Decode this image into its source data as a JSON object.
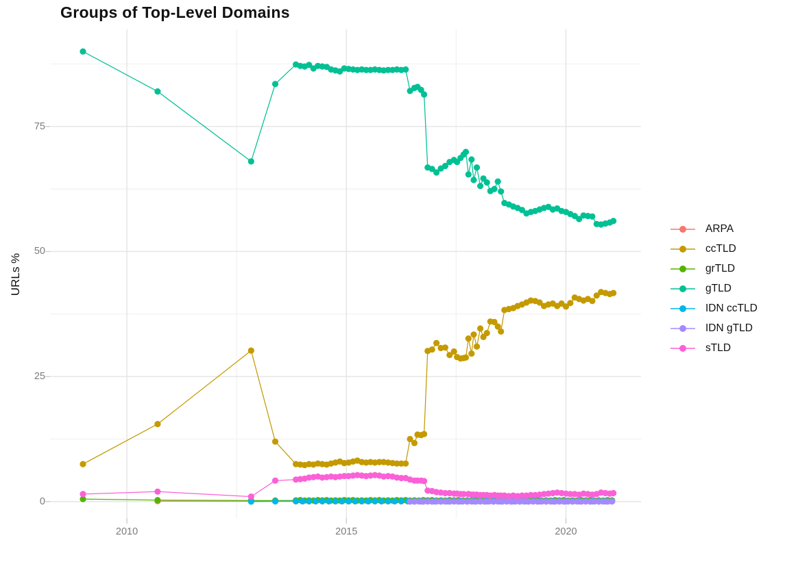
{
  "title": "Groups of Top-Level Domains",
  "colors": {
    "background": "#ffffff",
    "grid_major": "#e4e4e4",
    "grid_minor": "#f1f1f1",
    "tick_mark": "#cdcdcd",
    "tick_label": "#7b7b7b",
    "title_text": "#111111",
    "legend_text": "#111111"
  },
  "chart_data": {
    "type": "scatter",
    "title": "Groups of Top-Level Domains",
    "xlabel": "",
    "ylabel": "URLs %",
    "grid": true,
    "legend_position": "right",
    "x_ticks": [
      2010,
      2015,
      2020
    ],
    "x_minor": [
      2012.5,
      2017.5
    ],
    "y_ticks": [
      0,
      25,
      50,
      75
    ],
    "y_minor": [
      12.5,
      37.5,
      62.5,
      87.5
    ],
    "xlim": [
      2008.25,
      2021.71
    ],
    "ylim": [
      -3.3,
      94.4
    ],
    "series": [
      {
        "name": "ARPA",
        "color": "#F8766D",
        "points": [
          [
            2010.7,
            0.1
          ],
          [
            2012.83,
            0.07
          ],
          {
            "from": 2013.85,
            "to": 2021.08,
            "step": 0.15,
            "values": [
              0.05
            ]
          }
        ]
      },
      {
        "name": "ccTLD",
        "color": "#C49A00",
        "points": [
          [
            2009.0,
            7.5
          ],
          [
            2010.7,
            15.5
          ],
          [
            2012.83,
            30.2
          ],
          [
            2013.38,
            12.0
          ],
          [
            2013.85,
            7.5
          ],
          [
            2013.95,
            7.4
          ],
          [
            2014.05,
            7.3
          ],
          [
            2014.15,
            7.5
          ],
          [
            2014.25,
            7.4
          ],
          [
            2014.35,
            7.6
          ],
          [
            2014.45,
            7.5
          ],
          [
            2014.55,
            7.4
          ],
          [
            2014.65,
            7.6
          ],
          [
            2014.75,
            7.8
          ],
          [
            2014.85,
            8.0
          ],
          [
            2014.95,
            7.7
          ],
          [
            2015.05,
            7.8
          ],
          [
            2015.15,
            8.0
          ],
          [
            2015.25,
            8.2
          ],
          [
            2015.35,
            7.9
          ],
          [
            2015.45,
            7.8
          ],
          [
            2015.55,
            7.9
          ],
          [
            2015.65,
            7.8
          ],
          [
            2015.75,
            7.9
          ],
          [
            2015.85,
            7.9
          ],
          [
            2015.95,
            7.8
          ],
          [
            2016.05,
            7.7
          ],
          [
            2016.15,
            7.6
          ],
          [
            2016.25,
            7.6
          ],
          [
            2016.35,
            7.6
          ],
          [
            2016.45,
            12.5
          ],
          [
            2016.55,
            11.7
          ],
          [
            2016.62,
            13.4
          ],
          [
            2016.7,
            13.3
          ],
          [
            2016.77,
            13.5
          ],
          [
            2016.85,
            30.1
          ],
          [
            2016.95,
            30.4
          ],
          [
            2017.05,
            31.7
          ],
          [
            2017.15,
            30.7
          ],
          [
            2017.25,
            30.8
          ],
          [
            2017.35,
            29.3
          ],
          [
            2017.45,
            30.0
          ],
          [
            2017.52,
            28.9
          ],
          [
            2017.6,
            28.6
          ],
          [
            2017.67,
            28.7
          ],
          [
            2017.72,
            28.8
          ],
          [
            2017.78,
            32.6
          ],
          [
            2017.85,
            29.6
          ],
          [
            2017.9,
            33.4
          ],
          [
            2017.97,
            31.0
          ],
          [
            2018.05,
            34.6
          ],
          [
            2018.12,
            32.9
          ],
          [
            2018.2,
            33.7
          ],
          [
            2018.28,
            36.0
          ],
          [
            2018.37,
            35.9
          ],
          [
            2018.45,
            35.0
          ],
          [
            2018.52,
            34.0
          ],
          [
            2018.6,
            38.3
          ],
          [
            2018.7,
            38.5
          ],
          [
            2018.8,
            38.7
          ],
          [
            2018.9,
            39.1
          ],
          [
            2019.0,
            39.4
          ],
          [
            2019.1,
            39.8
          ],
          [
            2019.2,
            40.2
          ],
          [
            2019.3,
            40.1
          ],
          [
            2019.4,
            39.8
          ],
          [
            2019.5,
            39.1
          ],
          [
            2019.6,
            39.4
          ],
          [
            2019.7,
            39.6
          ],
          [
            2019.8,
            39.1
          ],
          [
            2019.9,
            39.6
          ],
          [
            2020.0,
            39.0
          ],
          [
            2020.1,
            39.7
          ],
          [
            2020.2,
            40.8
          ],
          [
            2020.3,
            40.5
          ],
          [
            2020.4,
            40.2
          ],
          [
            2020.5,
            40.5
          ],
          [
            2020.6,
            40.1
          ],
          [
            2020.7,
            41.2
          ],
          [
            2020.8,
            41.9
          ],
          [
            2020.9,
            41.7
          ],
          [
            2021.0,
            41.5
          ],
          [
            2021.08,
            41.7
          ]
        ]
      },
      {
        "name": "grTLD",
        "color": "#53B400",
        "points": [
          [
            2009.0,
            0.5
          ],
          [
            2010.7,
            0.3
          ],
          [
            2012.83,
            0.2
          ],
          [
            2013.38,
            0.2
          ],
          {
            "from": 2013.85,
            "to": 2021.08,
            "step": 0.1,
            "values": [
              0.25,
              0.3,
              0.2,
              0.25,
              0.2,
              0.3
            ]
          }
        ]
      },
      {
        "name": "gTLD",
        "color": "#00C094",
        "points": [
          [
            2009.0,
            90.0
          ],
          [
            2010.7,
            82.0
          ],
          [
            2012.83,
            68.0
          ],
          [
            2013.38,
            83.5
          ],
          [
            2013.85,
            87.4
          ],
          [
            2013.95,
            87.1
          ],
          [
            2014.05,
            87.0
          ],
          [
            2014.15,
            87.3
          ],
          [
            2014.25,
            86.6
          ],
          [
            2014.35,
            87.1
          ],
          [
            2014.45,
            87.0
          ],
          [
            2014.55,
            86.9
          ],
          [
            2014.65,
            86.4
          ],
          [
            2014.75,
            86.2
          ],
          [
            2014.85,
            86.0
          ],
          [
            2014.95,
            86.6
          ],
          [
            2015.05,
            86.5
          ],
          [
            2015.15,
            86.4
          ],
          [
            2015.25,
            86.3
          ],
          [
            2015.35,
            86.4
          ],
          [
            2015.45,
            86.3
          ],
          [
            2015.55,
            86.3
          ],
          [
            2015.65,
            86.4
          ],
          [
            2015.75,
            86.3
          ],
          [
            2015.85,
            86.2
          ],
          [
            2015.95,
            86.3
          ],
          [
            2016.05,
            86.3
          ],
          [
            2016.15,
            86.4
          ],
          [
            2016.25,
            86.3
          ],
          [
            2016.35,
            86.4
          ],
          [
            2016.45,
            82.1
          ],
          [
            2016.55,
            82.7
          ],
          [
            2016.62,
            82.9
          ],
          [
            2016.7,
            82.3
          ],
          [
            2016.77,
            81.4
          ],
          [
            2016.85,
            66.8
          ],
          [
            2016.95,
            66.5
          ],
          [
            2017.05,
            65.8
          ],
          [
            2017.15,
            66.6
          ],
          [
            2017.25,
            67.1
          ],
          [
            2017.35,
            67.9
          ],
          [
            2017.45,
            68.3
          ],
          [
            2017.52,
            67.9
          ],
          [
            2017.6,
            68.7
          ],
          [
            2017.67,
            69.4
          ],
          [
            2017.72,
            69.9
          ],
          [
            2017.78,
            65.4
          ],
          [
            2017.85,
            68.4
          ],
          [
            2017.9,
            64.3
          ],
          [
            2017.97,
            66.8
          ],
          [
            2018.05,
            63.1
          ],
          [
            2018.12,
            64.6
          ],
          [
            2018.2,
            63.8
          ],
          [
            2018.28,
            62.1
          ],
          [
            2018.37,
            62.5
          ],
          [
            2018.45,
            64.0
          ],
          [
            2018.52,
            62.0
          ],
          [
            2018.6,
            59.7
          ],
          [
            2018.7,
            59.4
          ],
          [
            2018.8,
            59.0
          ],
          [
            2018.9,
            58.7
          ],
          [
            2019.0,
            58.3
          ],
          [
            2019.1,
            57.6
          ],
          [
            2019.2,
            57.9
          ],
          [
            2019.3,
            58.1
          ],
          [
            2019.4,
            58.4
          ],
          [
            2019.5,
            58.7
          ],
          [
            2019.6,
            58.9
          ],
          [
            2019.7,
            58.4
          ],
          [
            2019.8,
            58.6
          ],
          [
            2019.9,
            58.1
          ],
          [
            2020.0,
            57.9
          ],
          [
            2020.1,
            57.5
          ],
          [
            2020.2,
            57.1
          ],
          [
            2020.3,
            56.5
          ],
          [
            2020.4,
            57.2
          ],
          [
            2020.5,
            57.1
          ],
          [
            2020.6,
            57.0
          ],
          [
            2020.7,
            55.5
          ],
          [
            2020.8,
            55.4
          ],
          [
            2020.9,
            55.6
          ],
          [
            2021.0,
            55.8
          ],
          [
            2021.08,
            56.1
          ]
        ]
      },
      {
        "name": "IDN ccTLD",
        "color": "#00B6EB",
        "points": [
          [
            2012.83,
            0.0
          ],
          [
            2013.38,
            0.05
          ],
          {
            "from": 2013.85,
            "to": 2021.08,
            "step": 0.15,
            "values": [
              0.08
            ]
          }
        ]
      },
      {
        "name": "IDN gTLD",
        "color": "#A58AFF",
        "points": [
          [
            2016.45,
            0.0
          ],
          {
            "from": 2016.55,
            "to": 2021.08,
            "step": 0.1,
            "values": [
              0.0,
              0.02
            ]
          }
        ]
      },
      {
        "name": "sTLD",
        "color": "#FB61D7",
        "points": [
          [
            2009.0,
            1.5
          ],
          [
            2010.7,
            2.0
          ],
          [
            2012.83,
            1.0
          ],
          [
            2013.38,
            4.2
          ],
          [
            2013.85,
            4.4
          ],
          [
            2013.95,
            4.5
          ],
          [
            2014.05,
            4.6
          ],
          [
            2014.15,
            4.8
          ],
          [
            2014.25,
            4.9
          ],
          [
            2014.35,
            5.0
          ],
          [
            2014.45,
            4.8
          ],
          [
            2014.55,
            4.9
          ],
          [
            2014.65,
            5.0
          ],
          [
            2014.75,
            4.9
          ],
          [
            2014.85,
            5.0
          ],
          [
            2014.95,
            5.1
          ],
          [
            2015.05,
            5.1
          ],
          [
            2015.15,
            5.2
          ],
          [
            2015.25,
            5.3
          ],
          [
            2015.35,
            5.2
          ],
          [
            2015.45,
            5.1
          ],
          [
            2015.55,
            5.2
          ],
          [
            2015.65,
            5.3
          ],
          [
            2015.75,
            5.2
          ],
          [
            2015.85,
            5.0
          ],
          [
            2015.95,
            5.1
          ],
          [
            2016.05,
            5.0
          ],
          [
            2016.15,
            4.8
          ],
          [
            2016.25,
            4.7
          ],
          [
            2016.35,
            4.7
          ],
          [
            2016.45,
            4.4
          ],
          [
            2016.55,
            4.2
          ],
          [
            2016.62,
            4.2
          ],
          [
            2016.7,
            4.2
          ],
          [
            2016.77,
            4.1
          ],
          [
            2016.85,
            2.2
          ],
          [
            2016.95,
            2.1
          ],
          [
            2017.05,
            1.9
          ],
          [
            2017.15,
            1.8
          ],
          [
            2017.25,
            1.7
          ],
          [
            2017.35,
            1.7
          ],
          [
            2017.45,
            1.6
          ],
          [
            2017.52,
            1.6
          ],
          [
            2017.6,
            1.5
          ],
          [
            2017.67,
            1.5
          ],
          [
            2017.78,
            1.5
          ],
          [
            2017.85,
            1.4
          ],
          [
            2017.9,
            1.4
          ],
          [
            2017.97,
            1.4
          ],
          [
            2018.05,
            1.3
          ],
          [
            2018.12,
            1.3
          ],
          [
            2018.2,
            1.3
          ],
          [
            2018.28,
            1.2
          ],
          [
            2018.37,
            1.3
          ],
          [
            2018.45,
            1.2
          ],
          [
            2018.52,
            1.2
          ],
          [
            2018.6,
            1.2
          ],
          [
            2018.7,
            1.1
          ],
          [
            2018.8,
            1.2
          ],
          [
            2018.9,
            1.1
          ],
          [
            2019.0,
            1.2
          ],
          [
            2019.1,
            1.2
          ],
          [
            2019.2,
            1.3
          ],
          [
            2019.3,
            1.3
          ],
          [
            2019.4,
            1.4
          ],
          [
            2019.5,
            1.5
          ],
          [
            2019.6,
            1.6
          ],
          [
            2019.7,
            1.7
          ],
          [
            2019.8,
            1.8
          ],
          [
            2019.9,
            1.7
          ],
          [
            2020.0,
            1.6
          ],
          [
            2020.1,
            1.5
          ],
          [
            2020.2,
            1.5
          ],
          [
            2020.3,
            1.4
          ],
          [
            2020.4,
            1.6
          ],
          [
            2020.5,
            1.5
          ],
          [
            2020.6,
            1.4
          ],
          [
            2020.7,
            1.5
          ],
          [
            2020.8,
            1.8
          ],
          [
            2020.9,
            1.7
          ],
          [
            2021.0,
            1.6
          ],
          [
            2021.08,
            1.7
          ]
        ]
      }
    ]
  }
}
